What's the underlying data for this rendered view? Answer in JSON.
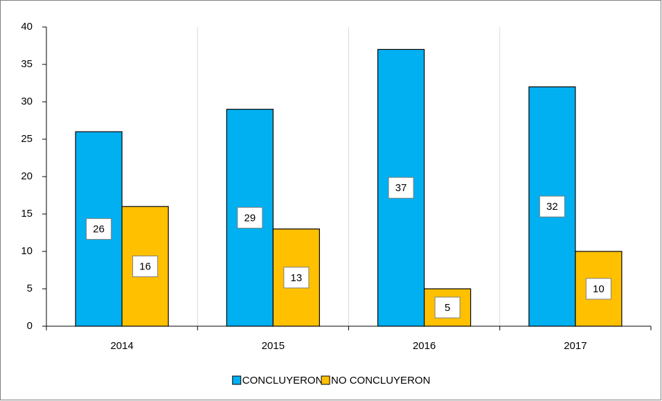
{
  "chart_data": {
    "type": "bar",
    "categories": [
      "2014",
      "2015",
      "2016",
      "2017"
    ],
    "series": [
      {
        "name": "CONCLUYERON",
        "color": "#00b0f0",
        "values": [
          26,
          29,
          37,
          32
        ]
      },
      {
        "name": "NO CONCLUYERON",
        "color": "#ffc000",
        "values": [
          16,
          13,
          5,
          10
        ]
      }
    ],
    "ylim": [
      0,
      40
    ],
    "yticks": [
      0,
      5,
      10,
      15,
      20,
      25,
      30,
      35,
      40
    ],
    "grid": "vertical",
    "legend": "bottom"
  }
}
